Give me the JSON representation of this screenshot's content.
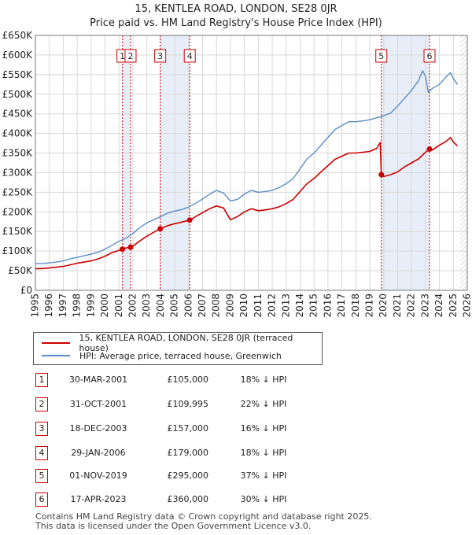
{
  "title": "15, KENTLEA ROAD, LONDON, SE28 0JR",
  "subtitle": "Price paid vs. HM Land Registry's House Price Index (HPI)",
  "colors": {
    "price_paid": "#cc0000",
    "hpi": "#5b8cc4",
    "band": "#e8eef8",
    "grid": "#d8d8d8"
  },
  "legend": {
    "price_paid_label": "15, KENTLEA ROAD, LONDON, SE28 0JR (terraced house)",
    "hpi_label": "HPI: Average price, terraced house, Greenwich"
  },
  "transactions": [
    {
      "num": "1",
      "date": "30-MAR-2001",
      "price": "£105,000",
      "hpi": "18% ↓ HPI"
    },
    {
      "num": "2",
      "date": "31-OCT-2001",
      "price": "£109,995",
      "hpi": "22% ↓ HPI"
    },
    {
      "num": "3",
      "date": "18-DEC-2003",
      "price": "£157,000",
      "hpi": "16% ↓ HPI"
    },
    {
      "num": "4",
      "date": "29-JAN-2006",
      "price": "£179,000",
      "hpi": "18% ↓ HPI"
    },
    {
      "num": "5",
      "date": "01-NOV-2019",
      "price": "£295,000",
      "hpi": "37% ↓ HPI"
    },
    {
      "num": "6",
      "date": "17-APR-2023",
      "price": "£360,000",
      "hpi": "30% ↓ HPI"
    }
  ],
  "footer": {
    "line1": "Contains HM Land Registry data © Crown copyright and database right 2025.",
    "line2": "This data is licensed under the Open Government Licence v3.0."
  },
  "chart_data": {
    "type": "line",
    "title": "15, KENTLEA ROAD, LONDON, SE28 0JR",
    "subtitle": "Price paid vs. HM Land Registry's House Price Index (HPI)",
    "xlim": [
      1995,
      2026
    ],
    "ylim": [
      0,
      650000
    ],
    "x_ticks": [
      1995,
      1996,
      1997,
      1998,
      1999,
      2000,
      2001,
      2002,
      2003,
      2004,
      2005,
      2006,
      2007,
      2008,
      2009,
      2010,
      2011,
      2012,
      2013,
      2014,
      2015,
      2016,
      2017,
      2018,
      2019,
      2020,
      2021,
      2022,
      2023,
      2024,
      2025,
      2026
    ],
    "y_ticks": [
      0,
      50000,
      100000,
      150000,
      200000,
      250000,
      300000,
      350000,
      400000,
      450000,
      500000,
      550000,
      600000,
      650000
    ],
    "y_tick_labels": [
      "£0",
      "£50K",
      "£100K",
      "£150K",
      "£200K",
      "£250K",
      "£300K",
      "£350K",
      "£400K",
      "£450K",
      "£500K",
      "£550K",
      "£600K",
      "£650K"
    ],
    "grid": true,
    "bands": [
      [
        2001.25,
        2001.83
      ],
      [
        2003.96,
        2006.08
      ],
      [
        2019.83,
        2023.29
      ]
    ],
    "future_hatch_from": 2025.5,
    "markers": [
      {
        "label": "1",
        "x": 2001.25
      },
      {
        "label": "2",
        "x": 2001.83
      },
      {
        "label": "3",
        "x": 2003.96
      },
      {
        "label": "4",
        "x": 2006.08
      },
      {
        "label": "5",
        "x": 2019.83
      },
      {
        "label": "6",
        "x": 2023.29
      }
    ],
    "series": [
      {
        "name": "HPI: Average price, terraced house, Greenwich",
        "color": "#5b8cc4",
        "points": [
          [
            1995.0,
            68000
          ],
          [
            1995.5,
            68500
          ],
          [
            1996.0,
            70000
          ],
          [
            1996.5,
            72000
          ],
          [
            1997.0,
            75000
          ],
          [
            1997.5,
            80000
          ],
          [
            1998.0,
            84000
          ],
          [
            1998.5,
            88000
          ],
          [
            1999.0,
            92000
          ],
          [
            1999.5,
            97000
          ],
          [
            2000.0,
            105000
          ],
          [
            2000.5,
            115000
          ],
          [
            2001.0,
            125000
          ],
          [
            2001.5,
            133000
          ],
          [
            2002.0,
            145000
          ],
          [
            2002.5,
            160000
          ],
          [
            2003.0,
            172000
          ],
          [
            2003.5,
            180000
          ],
          [
            2004.0,
            188000
          ],
          [
            2004.5,
            197000
          ],
          [
            2005.0,
            202000
          ],
          [
            2005.5,
            206000
          ],
          [
            2006.0,
            212000
          ],
          [
            2006.5,
            222000
          ],
          [
            2007.0,
            233000
          ],
          [
            2007.5,
            245000
          ],
          [
            2008.0,
            255000
          ],
          [
            2008.5,
            248000
          ],
          [
            2009.0,
            228000
          ],
          [
            2009.5,
            232000
          ],
          [
            2010.0,
            245000
          ],
          [
            2010.5,
            255000
          ],
          [
            2011.0,
            250000
          ],
          [
            2011.5,
            252000
          ],
          [
            2012.0,
            255000
          ],
          [
            2012.5,
            262000
          ],
          [
            2013.0,
            272000
          ],
          [
            2013.5,
            285000
          ],
          [
            2014.0,
            310000
          ],
          [
            2014.5,
            335000
          ],
          [
            2015.0,
            350000
          ],
          [
            2015.5,
            370000
          ],
          [
            2016.0,
            390000
          ],
          [
            2016.5,
            410000
          ],
          [
            2017.0,
            420000
          ],
          [
            2017.5,
            430000
          ],
          [
            2018.0,
            430000
          ],
          [
            2018.5,
            432000
          ],
          [
            2019.0,
            435000
          ],
          [
            2019.5,
            440000
          ],
          [
            2020.0,
            445000
          ],
          [
            2020.5,
            452000
          ],
          [
            2021.0,
            470000
          ],
          [
            2021.5,
            490000
          ],
          [
            2022.0,
            510000
          ],
          [
            2022.5,
            535000
          ],
          [
            2022.8,
            560000
          ],
          [
            2023.0,
            545000
          ],
          [
            2023.2,
            505000
          ],
          [
            2023.5,
            515000
          ],
          [
            2024.0,
            525000
          ],
          [
            2024.5,
            545000
          ],
          [
            2024.8,
            555000
          ],
          [
            2025.0,
            540000
          ],
          [
            2025.3,
            525000
          ]
        ]
      },
      {
        "name": "15, KENTLEA ROAD, LONDON, SE28 0JR (terraced house)",
        "color": "#cc0000",
        "points": [
          [
            1995.0,
            55000
          ],
          [
            1995.5,
            55500
          ],
          [
            1996.0,
            57000
          ],
          [
            1996.5,
            59000
          ],
          [
            1997.0,
            61000
          ],
          [
            1997.5,
            65000
          ],
          [
            1998.0,
            69000
          ],
          [
            1998.5,
            72000
          ],
          [
            1999.0,
            75000
          ],
          [
            1999.5,
            80000
          ],
          [
            2000.0,
            87000
          ],
          [
            2000.5,
            96000
          ],
          [
            2001.0,
            102000
          ],
          [
            2001.25,
            105000
          ],
          [
            2001.5,
            108000
          ],
          [
            2001.83,
            109995
          ],
          [
            2002.0,
            113000
          ],
          [
            2002.5,
            126000
          ],
          [
            2003.0,
            138000
          ],
          [
            2003.5,
            148000
          ],
          [
            2003.96,
            157000
          ],
          [
            2004.5,
            165000
          ],
          [
            2005.0,
            170000
          ],
          [
            2005.5,
            174000
          ],
          [
            2006.08,
            179000
          ],
          [
            2006.5,
            188000
          ],
          [
            2007.0,
            198000
          ],
          [
            2007.5,
            208000
          ],
          [
            2008.0,
            215000
          ],
          [
            2008.5,
            210000
          ],
          [
            2009.0,
            180000
          ],
          [
            2009.5,
            188000
          ],
          [
            2010.0,
            200000
          ],
          [
            2010.5,
            208000
          ],
          [
            2011.0,
            203000
          ],
          [
            2011.5,
            205000
          ],
          [
            2012.0,
            208000
          ],
          [
            2012.5,
            213000
          ],
          [
            2013.0,
            221000
          ],
          [
            2013.5,
            232000
          ],
          [
            2014.0,
            252000
          ],
          [
            2014.5,
            272000
          ],
          [
            2015.0,
            285000
          ],
          [
            2015.5,
            302000
          ],
          [
            2016.0,
            318000
          ],
          [
            2016.5,
            334000
          ],
          [
            2017.0,
            342000
          ],
          [
            2017.5,
            350000
          ],
          [
            2018.0,
            350000
          ],
          [
            2018.5,
            352000
          ],
          [
            2019.0,
            354000
          ],
          [
            2019.5,
            362000
          ],
          [
            2019.75,
            377000
          ],
          [
            2019.83,
            295000
          ],
          [
            2020.0,
            290000
          ],
          [
            2020.5,
            295000
          ],
          [
            2021.0,
            302000
          ],
          [
            2021.5,
            315000
          ],
          [
            2022.0,
            325000
          ],
          [
            2022.5,
            335000
          ],
          [
            2023.0,
            352000
          ],
          [
            2023.29,
            360000
          ],
          [
            2023.5,
            358000
          ],
          [
            2024.0,
            370000
          ],
          [
            2024.5,
            380000
          ],
          [
            2024.8,
            390000
          ],
          [
            2025.0,
            378000
          ],
          [
            2025.3,
            368000
          ]
        ]
      }
    ]
  }
}
